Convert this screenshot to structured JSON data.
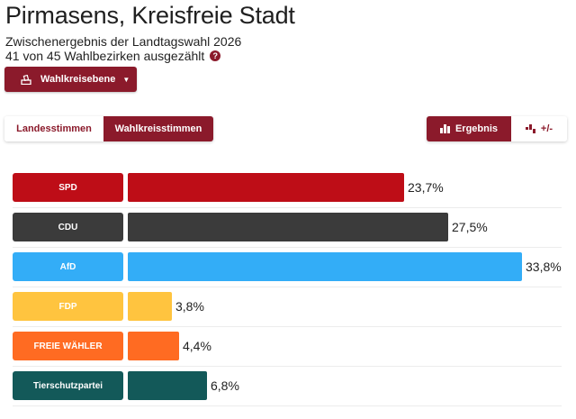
{
  "header": {
    "title": "Pirmasens, Kreisfreie Stadt",
    "subtitle": "Zwischenergebnis der Landtagswahl 2026",
    "counted": "41 von 45 Wahlbezirken ausgezählt"
  },
  "level_button": {
    "label": "Wahlkreisebene",
    "icon": "ballot-box-icon"
  },
  "vote_tabs": {
    "landesstimmen": "Landesstimmen",
    "wahlkreisstimmen": "Wahlkreisstimmen",
    "active": "wahlkreisstimmen"
  },
  "view_tabs": {
    "ergebnis": "Ergebnis",
    "diff": "+/-",
    "active": "ergebnis"
  },
  "colors": {
    "accent": "#8b1a2b"
  },
  "chart_data": {
    "type": "bar",
    "orientation": "horizontal",
    "unit": "%",
    "categories": [
      "SPD",
      "CDU",
      "AfD",
      "FDP",
      "FREIE WÄHLER",
      "Tierschutzpartei"
    ],
    "values": [
      23.7,
      27.5,
      33.8,
      3.8,
      4.4,
      6.8
    ],
    "labels": [
      "23,7%",
      "27,5%",
      "33,8%",
      "3,8%",
      "4,4%",
      "6,8%"
    ],
    "colors": [
      "#be0d17",
      "#3b3b3b",
      "#33adf7",
      "#ffc43f",
      "#ff6b22",
      "#135959"
    ],
    "xlim": [
      0,
      33.8
    ]
  }
}
